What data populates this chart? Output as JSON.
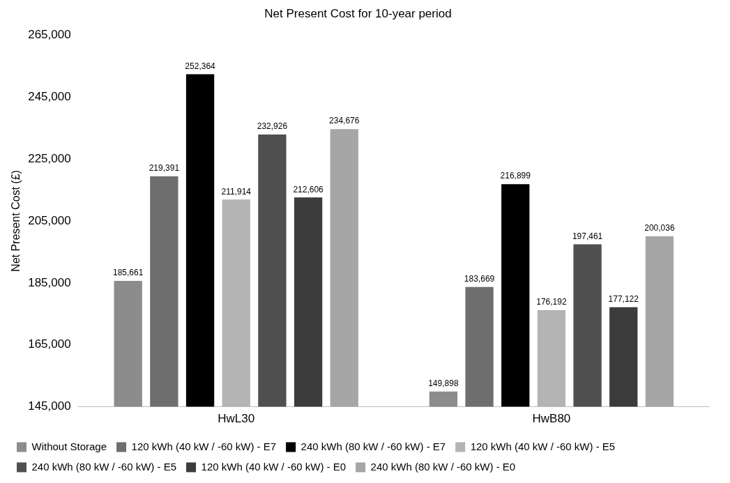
{
  "chart_data": {
    "type": "bar",
    "title": "Net Present Cost for 10-year period",
    "ylabel": "Net Present Cost (£)",
    "categories": [
      "HwL30",
      "HwB80"
    ],
    "series": [
      {
        "name": "Without Storage",
        "color": "#8c8c8c",
        "values": [
          185661,
          149898
        ],
        "value_labels": [
          "185,661",
          "149,898"
        ]
      },
      {
        "name": "120 kWh (40 kW / -60 kW) - E7",
        "color": "#6e6e6e",
        "values": [
          219391,
          183669
        ],
        "value_labels": [
          "219,391",
          "183,669"
        ]
      },
      {
        "name": "240 kWh (80 kW / -60 kW) - E7",
        "color": "#000000",
        "values": [
          252364,
          216899
        ],
        "value_labels": [
          "252,364",
          "216,899"
        ]
      },
      {
        "name": "120 kWh (40 kW / -60 kW) - E5",
        "color": "#b4b4b4",
        "values": [
          211914,
          176192
        ],
        "value_labels": [
          "211,914",
          "176,192"
        ]
      },
      {
        "name": "240 kWh (80 kW / -60 kW) - E5",
        "color": "#505050",
        "values": [
          232926,
          197461
        ],
        "value_labels": [
          "232,926",
          "197,461"
        ]
      },
      {
        "name": "120 kWh (40 kW / -60 kW) - E0",
        "color": "#3c3c3c",
        "values": [
          212606,
          177122
        ],
        "value_labels": [
          "212,606",
          "177,122"
        ]
      },
      {
        "name": "240 kWh (80 kW / -60 kW) - E0",
        "color": "#a6a6a6",
        "values": [
          234676,
          200036
        ],
        "value_labels": [
          "234,676",
          "200,036"
        ]
      }
    ],
    "ylim": [
      145000,
      265000
    ],
    "yticks": [
      {
        "value": 145000,
        "label": "145,000"
      },
      {
        "value": 165000,
        "label": "165,000"
      },
      {
        "value": 185000,
        "label": "185,000"
      },
      {
        "value": 205000,
        "label": "205,000"
      },
      {
        "value": 225000,
        "label": "225,000"
      },
      {
        "value": 245000,
        "label": "245,000"
      },
      {
        "value": 265000,
        "label": "265,000"
      }
    ],
    "grid": false,
    "legend": "bottom"
  }
}
